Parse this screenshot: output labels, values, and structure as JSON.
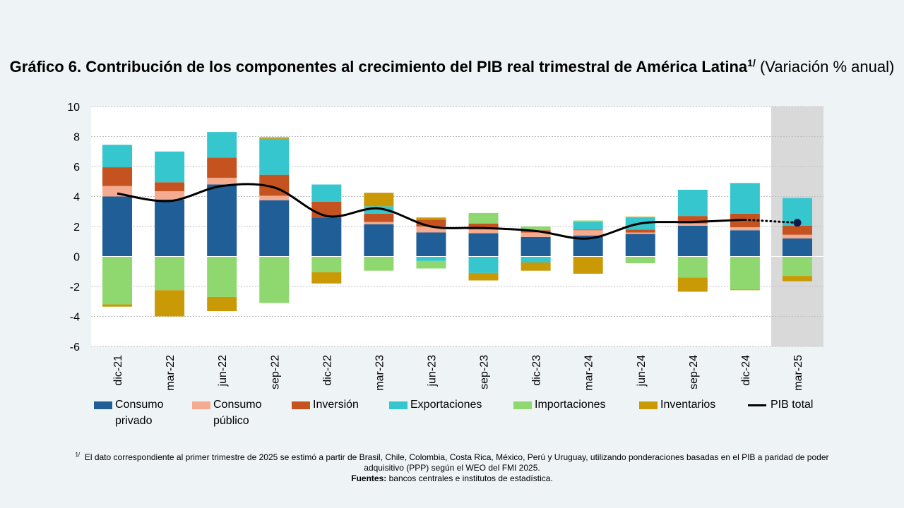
{
  "title": {
    "bold_text": "Gráfico 6. Contribución de los componentes al crecimiento del PIB real trimestral de América Latina",
    "superscript": "1/",
    "subtitle": "(Variación % anual)"
  },
  "legend": {
    "items": [
      {
        "label": "Consumo\nprivado",
        "color": "#1f5e96"
      },
      {
        "label": "Consumo\npúblico",
        "color": "#f4ab8f"
      },
      {
        "label": "Inversión",
        "color": "#c55320"
      },
      {
        "label": "Exportaciones",
        "color": "#36c6cd"
      },
      {
        "label": "Importaciones",
        "color": "#8fd870"
      },
      {
        "label": "Inventarios",
        "color": "#c99a06"
      },
      {
        "label": "PIB total",
        "color": "#000000"
      }
    ]
  },
  "footnote": {
    "marker": "1/",
    "text": "El dato correspondiente al primer trimestre de 2025 se estimó a partir de Brasil, Chile, Colombia, Costa Rica, México, Perú y Uruguay, utilizando ponderaciones basadas en el PIB a paridad de poder adquisitivo (PPP) según el WEO del FMI 2025.",
    "source_label": "Fuentes:",
    "source_text": "bancos centrales e institutos de estadística."
  },
  "chart_data": {
    "type": "bar",
    "stacked": true,
    "categories": [
      "dic-21",
      "mar-22",
      "jun-22",
      "sep-22",
      "dic-22",
      "mar-23",
      "jun-23",
      "sep-23",
      "dic-23",
      "mar-24",
      "jun-24",
      "sep-24",
      "dic-24",
      "mar-25"
    ],
    "ylim": [
      -6,
      10
    ],
    "yticks": [
      10,
      8,
      6,
      4,
      2,
      0,
      -2,
      -4,
      -6
    ],
    "grid": true,
    "shaded_period": "mar-25",
    "legend_position": "bottom",
    "series": [
      {
        "name": "Consumo privado",
        "color": "#1f5e96",
        "values": [
          4.0,
          3.8,
          4.8,
          3.75,
          2.6,
          2.15,
          1.6,
          1.55,
          1.3,
          1.4,
          1.5,
          2.05,
          1.75,
          1.2
        ]
      },
      {
        "name": "Consumo público",
        "color": "#f4ab8f",
        "values": [
          0.7,
          0.55,
          0.45,
          0.3,
          0.0,
          0.15,
          0.4,
          0.25,
          0.3,
          0.35,
          0.1,
          0.15,
          0.2,
          0.25
        ]
      },
      {
        "name": "Inversión",
        "color": "#c55320",
        "values": [
          1.25,
          0.6,
          1.35,
          1.4,
          1.05,
          0.55,
          0.45,
          0.4,
          0.15,
          0.05,
          0.2,
          0.5,
          0.9,
          0.6
        ]
      },
      {
        "name": "Exportaciones",
        "color": "#36c6cd",
        "values": [
          1.5,
          2.05,
          1.7,
          2.4,
          1.15,
          0.5,
          -0.3,
          -1.1,
          -0.4,
          0.5,
          0.8,
          1.75,
          2.05,
          1.85
        ]
      },
      {
        "name": "Importaciones",
        "color": "#8fd870",
        "values": [
          -3.2,
          -2.25,
          -2.7,
          -3.1,
          -1.05,
          -0.95,
          -0.5,
          0.7,
          0.25,
          0.1,
          -0.45,
          -1.4,
          -2.2,
          -1.3
        ]
      },
      {
        "name": "Inventarios",
        "color": "#c99a06",
        "values": [
          -0.15,
          -1.75,
          -0.95,
          0.1,
          -0.75,
          0.9,
          0.15,
          -0.5,
          -0.55,
          -1.15,
          0.05,
          -0.95,
          -0.05,
          -0.35
        ]
      }
    ],
    "line": {
      "name": "PIB total",
      "color": "#000000",
      "values": [
        4.2,
        3.7,
        4.7,
        4.6,
        2.7,
        3.2,
        2.0,
        1.9,
        1.7,
        1.2,
        2.2,
        2.3,
        2.45,
        2.25
      ],
      "estimated_last": true
    }
  }
}
